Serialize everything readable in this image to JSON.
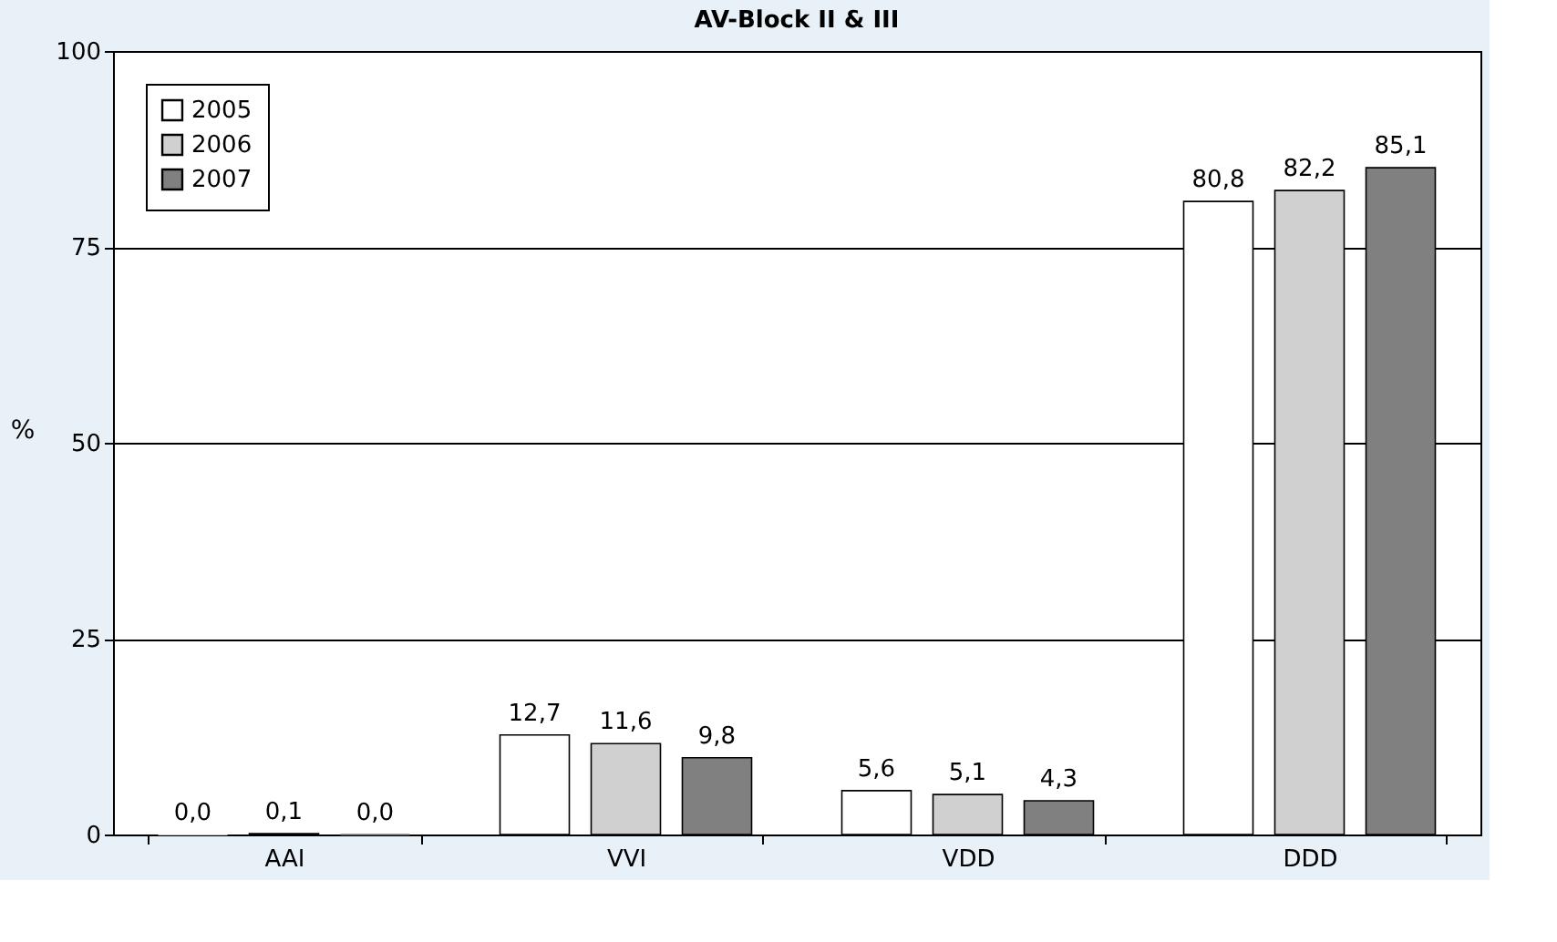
{
  "chart_data": {
    "type": "bar",
    "title": "AV-Block II & III",
    "ylabel": "%",
    "categories": [
      "AAI",
      "VVI",
      "VDD",
      "DDD"
    ],
    "series": [
      {
        "name": "2005",
        "color": "#ffffff",
        "values": [
          0.0,
          12.7,
          5.6,
          80.8
        ],
        "value_labels": [
          "0,0",
          "12,7",
          "5,6",
          "80,8"
        ]
      },
      {
        "name": "2006",
        "color": "#d0d0d0",
        "values": [
          0.1,
          11.6,
          5.1,
          82.2
        ],
        "value_labels": [
          "0,1",
          "11,6",
          "5,1",
          "82,2"
        ]
      },
      {
        "name": "2007",
        "color": "#808080",
        "values": [
          0.0,
          9.8,
          4.3,
          85.1
        ],
        "value_labels": [
          "0,0",
          "9,8",
          "4,3",
          "85,1"
        ]
      }
    ],
    "ylim": [
      0,
      100
    ],
    "yticks": [
      0,
      25,
      50,
      75,
      100
    ],
    "grid": "y",
    "legend": "top left"
  }
}
